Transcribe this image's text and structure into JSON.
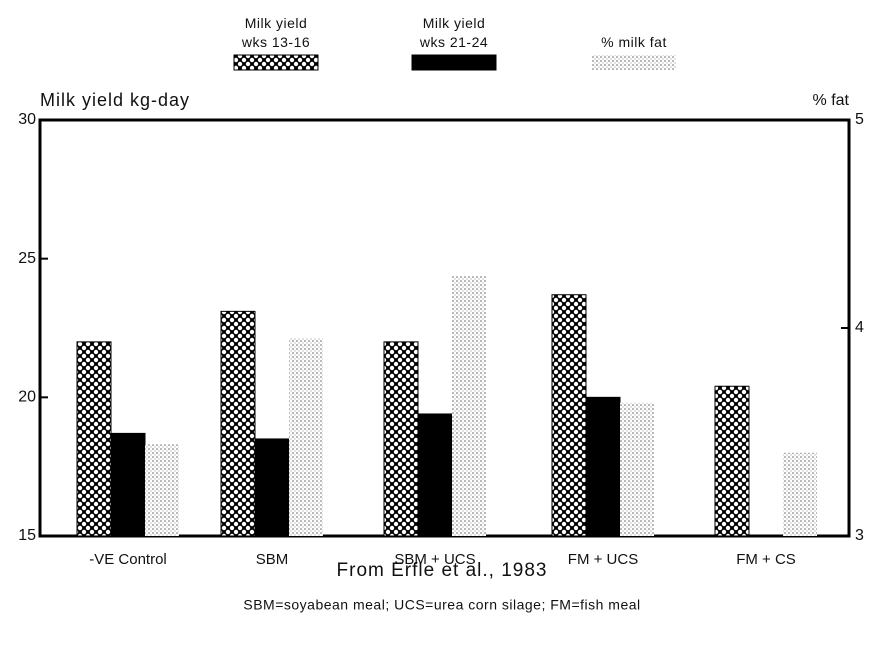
{
  "chart_data": {
    "type": "bar",
    "y_label": "Milk yield kg-day",
    "y2_label": "% fat",
    "source": "From Erfle et al., 1983",
    "note": "SBM=soyabean meal; UCS=urea corn silage; FM=fish meal",
    "categories": [
      "-VE Control",
      "SBM",
      "SBM + UCS",
      "FM + UCS",
      "FM + CS"
    ],
    "series": [
      {
        "name": "Milk yield wks 13-16",
        "color": "#000000",
        "pattern": "crosshatch",
        "values": [
          22,
          23.1,
          22,
          23.7,
          20.4
        ]
      },
      {
        "name": "Milk yield wks 21-24",
        "color": "#000000",
        "pattern": "solid",
        "values": [
          18.7,
          18.5,
          19.4,
          20,
          null
        ]
      },
      {
        "name": "% milk fat",
        "color": "#555555",
        "pattern": "dots",
        "axis": "y2",
        "values": [
          3.44,
          3.95,
          4.25,
          3.64,
          3.4
        ]
      }
    ],
    "ylim": [
      15,
      30
    ],
    "yticks": [
      15,
      20,
      25,
      30
    ],
    "y2lim": [
      3,
      5
    ],
    "y2ticks": [
      3,
      4,
      5
    ],
    "grid": false
  }
}
